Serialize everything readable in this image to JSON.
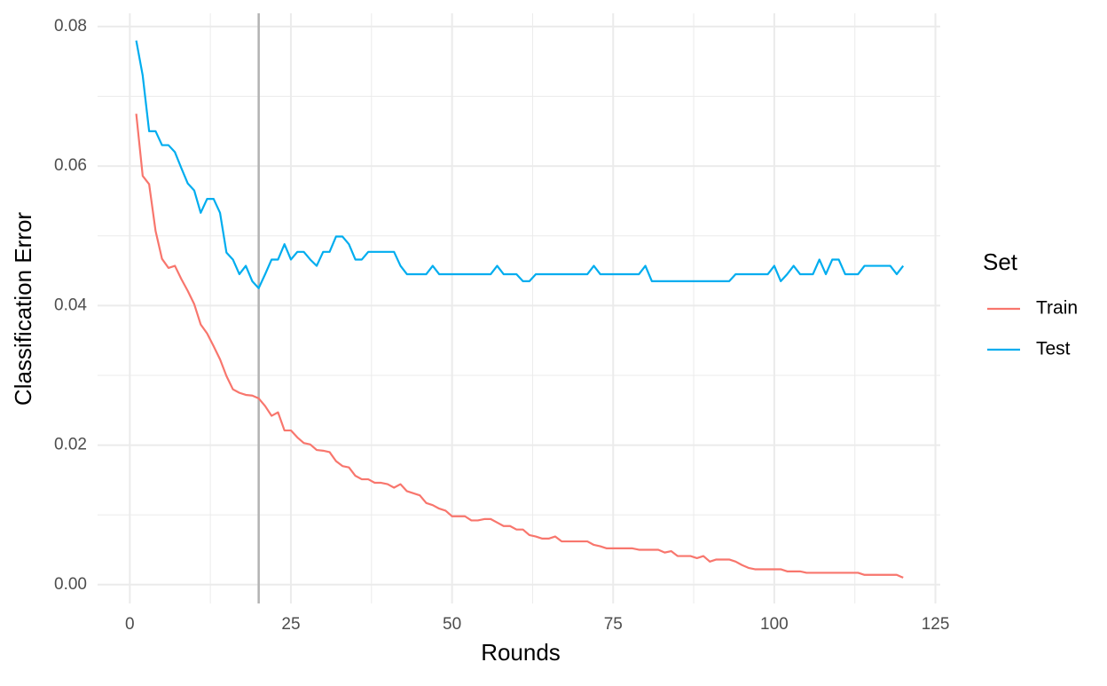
{
  "chart_data": {
    "type": "line",
    "xlabel": "Rounds",
    "ylabel": "Classification Error",
    "legend_title": "Set",
    "x": [
      1,
      2,
      3,
      4,
      5,
      6,
      7,
      8,
      9,
      10,
      11,
      12,
      13,
      14,
      15,
      16,
      17,
      18,
      19,
      20,
      21,
      22,
      23,
      24,
      25,
      26,
      27,
      28,
      29,
      30,
      31,
      32,
      33,
      34,
      35,
      36,
      37,
      38,
      39,
      40,
      41,
      42,
      43,
      44,
      45,
      46,
      47,
      48,
      49,
      50,
      51,
      52,
      53,
      54,
      55,
      56,
      57,
      58,
      59,
      60,
      61,
      62,
      63,
      64,
      65,
      66,
      67,
      68,
      69,
      70,
      71,
      72,
      73,
      74,
      75,
      76,
      77,
      78,
      79,
      80,
      81,
      82,
      83,
      84,
      85,
      86,
      87,
      88,
      89,
      90,
      91,
      92,
      93,
      94,
      95,
      96,
      97,
      98,
      99,
      100,
      101,
      102,
      103,
      104,
      105,
      106,
      107,
      108,
      109,
      110,
      111,
      112,
      113,
      114,
      115,
      116,
      117,
      118,
      119,
      120
    ],
    "series": [
      {
        "name": "Train",
        "color": "#F8766D",
        "values": [
          0.0675,
          0.0586,
          0.0574,
          0.0507,
          0.0467,
          0.0454,
          0.0457,
          0.0438,
          0.0421,
          0.0402,
          0.0373,
          0.036,
          0.0342,
          0.0323,
          0.0299,
          0.028,
          0.0275,
          0.0272,
          0.0271,
          0.0267,
          0.0256,
          0.0242,
          0.0247,
          0.0221,
          0.0221,
          0.0211,
          0.0203,
          0.0201,
          0.0193,
          0.0192,
          0.019,
          0.0177,
          0.017,
          0.0168,
          0.0156,
          0.0151,
          0.0151,
          0.0146,
          0.0146,
          0.0144,
          0.0139,
          0.0144,
          0.0134,
          0.0131,
          0.0128,
          0.0117,
          0.0114,
          0.0109,
          0.0106,
          0.0098,
          0.0098,
          0.0098,
          0.0092,
          0.0092,
          0.0094,
          0.0094,
          0.0089,
          0.0084,
          0.0084,
          0.0079,
          0.0079,
          0.0071,
          0.0069,
          0.0066,
          0.0066,
          0.0069,
          0.0062,
          0.0062,
          0.0062,
          0.0062,
          0.0062,
          0.0057,
          0.0055,
          0.0052,
          0.0052,
          0.0052,
          0.0052,
          0.0052,
          0.005,
          0.005,
          0.005,
          0.005,
          0.0046,
          0.0048,
          0.0041,
          0.0041,
          0.0041,
          0.0038,
          0.0041,
          0.0033,
          0.0036,
          0.0036,
          0.0036,
          0.0033,
          0.0028,
          0.0024,
          0.0022,
          0.0022,
          0.0022,
          0.0022,
          0.0022,
          0.0019,
          0.0019,
          0.0019,
          0.0017,
          0.0017,
          0.0017,
          0.0017,
          0.0017,
          0.0017,
          0.0017,
          0.0017,
          0.0017,
          0.0014,
          0.0014,
          0.0014,
          0.0014,
          0.0014,
          0.0014,
          0.001
        ]
      },
      {
        "name": "Test",
        "color": "#00ADEF",
        "values": [
          0.078,
          0.073,
          0.065,
          0.065,
          0.063,
          0.063,
          0.062,
          0.0597,
          0.0575,
          0.0565,
          0.0533,
          0.0553,
          0.0553,
          0.0533,
          0.0476,
          0.0466,
          0.0445,
          0.0457,
          0.0435,
          0.0425,
          0.0445,
          0.0466,
          0.0466,
          0.0488,
          0.0466,
          0.0477,
          0.0477,
          0.0466,
          0.0457,
          0.0477,
          0.0477,
          0.0499,
          0.0499,
          0.0488,
          0.0466,
          0.0466,
          0.0477,
          0.0477,
          0.0477,
          0.0477,
          0.0477,
          0.0457,
          0.0445,
          0.0445,
          0.0445,
          0.0445,
          0.0457,
          0.0445,
          0.0445,
          0.0445,
          0.0445,
          0.0445,
          0.0445,
          0.0445,
          0.0445,
          0.0445,
          0.0457,
          0.0445,
          0.0445,
          0.0445,
          0.0435,
          0.0435,
          0.0445,
          0.0445,
          0.0445,
          0.0445,
          0.0445,
          0.0445,
          0.0445,
          0.0445,
          0.0445,
          0.0457,
          0.0445,
          0.0445,
          0.0445,
          0.0445,
          0.0445,
          0.0445,
          0.0445,
          0.0457,
          0.0435,
          0.0435,
          0.0435,
          0.0435,
          0.0435,
          0.0435,
          0.0435,
          0.0435,
          0.0435,
          0.0435,
          0.0435,
          0.0435,
          0.0435,
          0.0445,
          0.0445,
          0.0445,
          0.0445,
          0.0445,
          0.0445,
          0.0457,
          0.0435,
          0.0445,
          0.0457,
          0.0445,
          0.0445,
          0.0445,
          0.0466,
          0.0445,
          0.0466,
          0.0466,
          0.0445,
          0.0445,
          0.0445,
          0.0457,
          0.0457,
          0.0457,
          0.0457,
          0.0457,
          0.0445,
          0.0457
        ]
      }
    ],
    "vline": 20,
    "vline_color": "#b3b3b3",
    "xlim": [
      -5,
      125.75
    ],
    "ylim": [
      -0.0027,
      0.0819
    ],
    "xticks": [
      0,
      25,
      50,
      75,
      100,
      125
    ],
    "yticks": [
      {
        "value": 0,
        "label": "0.00"
      },
      0.02,
      0.04,
      0.06,
      0.08
    ],
    "grid": true,
    "minor_grid": true,
    "legend": "right"
  }
}
